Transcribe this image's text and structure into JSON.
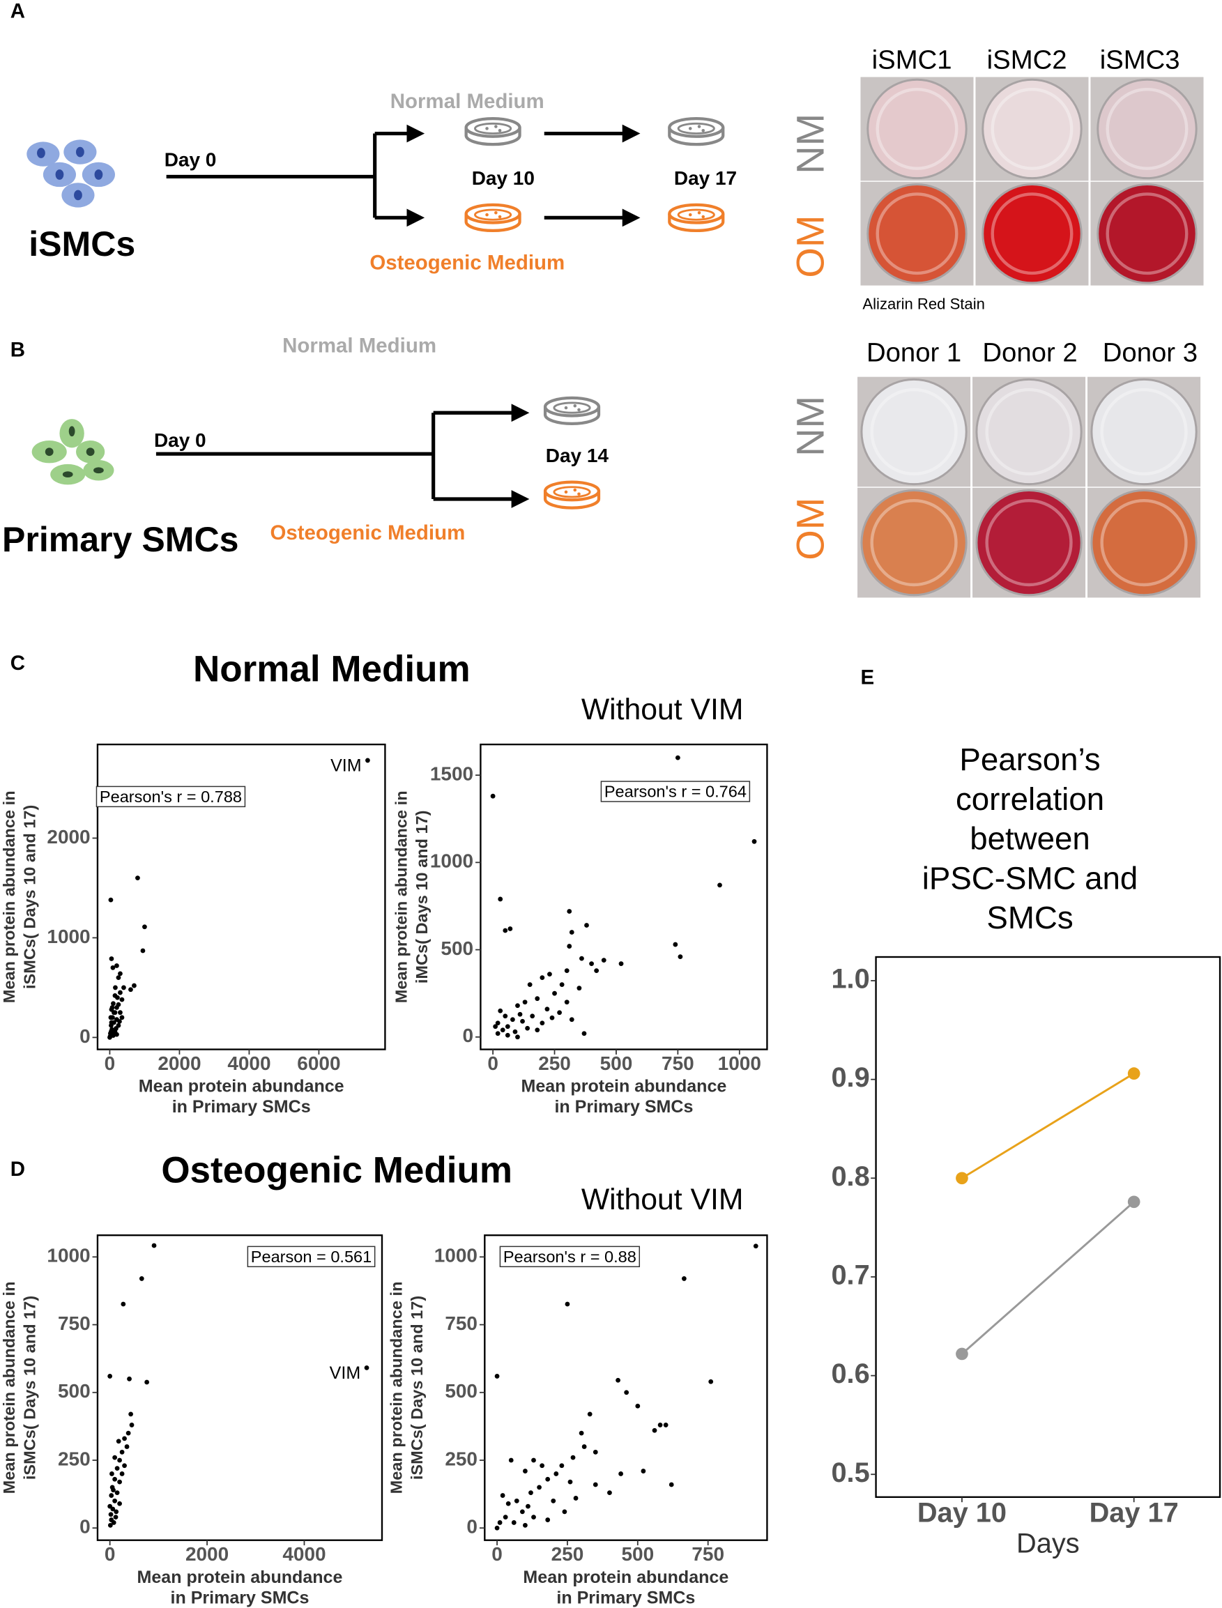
{
  "panel_a": {
    "label": "A",
    "cell_label": "iSMCs",
    "start": "Day 0",
    "normal": "Normal Medium",
    "osteogenic": "Osteogenic Medium",
    "day_mid": "Day 10",
    "day_end": "Day 17",
    "wells": [
      "iSMC1",
      "iSMC2",
      "iSMC3"
    ],
    "rows": [
      "NM",
      "OM"
    ],
    "stain": "Alizarin Red Stain"
  },
  "panel_b": {
    "label": "B",
    "cell_label": "Primary SMCs",
    "start": "Day 0",
    "normal": "Normal Medium",
    "osteogenic": "Osteogenic Medium",
    "day": "Day 14",
    "wells": [
      "Donor 1",
      "Donor 2",
      "Donor 3"
    ],
    "rows": [
      "NM",
      "OM"
    ]
  },
  "panel_c": {
    "label": "C",
    "title": "Normal Medium",
    "subtitle": "Without VIM"
  },
  "panel_d": {
    "label": "D",
    "title": "Osteogenic Medium",
    "subtitle": "Without VIM"
  },
  "panel_e": {
    "label": "E"
  },
  "chart_data": [
    {
      "type": "scatter",
      "stat_label": "Pearson's r  = 0.788",
      "xlabel": [
        "Mean protein abundance",
        "in Primary SMCs"
      ],
      "ylabel": [
        "Mean protein abundance in",
        "iSMCs( Days 10 and 17)"
      ],
      "xlim": [
        -350,
        7900
      ],
      "ylim": [
        -120,
        2940
      ],
      "xticks": [
        0,
        2000,
        4000,
        6000
      ],
      "yticks": [
        0,
        1000,
        2000
      ],
      "color": "#000000",
      "annotations": [
        {
          "text": "VIM",
          "x": 7400,
          "y": 2780
        }
      ],
      "x": [
        30,
        50,
        90,
        200,
        300,
        250,
        800,
        1000,
        950,
        700,
        600,
        400,
        300,
        150,
        350,
        250,
        100,
        200,
        50,
        150,
        300,
        80,
        200,
        120,
        40,
        250,
        60,
        150,
        20,
        100,
        10,
        200,
        70,
        180,
        30,
        350,
        120,
        280,
        50,
        90,
        0,
        220,
        160,
        40,
        7400
      ],
      "values": [
        1380,
        790,
        700,
        720,
        640,
        600,
        1600,
        1110,
        870,
        520,
        480,
        500,
        450,
        420,
        380,
        330,
        340,
        300,
        280,
        250,
        250,
        200,
        180,
        150,
        120,
        120,
        80,
        60,
        40,
        20,
        10,
        30,
        300,
        90,
        200,
        200,
        250,
        160,
        150,
        50,
        0,
        400,
        500,
        60,
        2780
      ]
    },
    {
      "type": "scatter",
      "stat_label": "Pearson's r = 0.764",
      "xlabel": [
        "Mean protein abundance",
        "in Primary SMCs"
      ],
      "ylabel": [
        "Mean protein abundance in",
        "iMCs( Days 10 and 17)"
      ],
      "xlim": [
        -50,
        1112
      ],
      "ylim": [
        -71,
        1676
      ],
      "xticks": [
        0,
        250,
        500,
        750,
        1000
      ],
      "yticks": [
        0,
        500,
        1000,
        1500
      ],
      "color": "#000000",
      "x": [
        0,
        750,
        1060,
        920,
        740,
        760,
        30,
        50,
        70,
        310,
        320,
        380,
        310,
        400,
        360,
        450,
        420,
        520,
        300,
        230,
        280,
        350,
        250,
        200,
        150,
        180,
        130,
        100,
        220,
        300,
        270,
        160,
        120,
        80,
        60,
        40,
        20,
        10,
        90,
        140,
        50,
        200,
        30,
        100,
        370,
        240,
        180,
        60,
        110,
        20,
        320
      ],
      "values": [
        1380,
        1600,
        1120,
        870,
        530,
        460,
        790,
        610,
        620,
        720,
        600,
        640,
        520,
        420,
        450,
        440,
        380,
        420,
        380,
        360,
        300,
        280,
        250,
        340,
        300,
        220,
        200,
        180,
        160,
        200,
        140,
        120,
        90,
        100,
        60,
        40,
        20,
        60,
        30,
        50,
        120,
        80,
        150,
        0,
        20,
        110,
        40,
        10,
        130,
        80,
        100
      ]
    },
    {
      "type": "scatter",
      "stat_label": "Pearson = 0.561",
      "xlabel": [
        "Mean protein abundance",
        "in Primary SMCs"
      ],
      "ylabel": [
        "Mean protein abundance in",
        "iSMCs( Days 10 and 17)"
      ],
      "xlim": [
        -254,
        5600
      ],
      "ylim": [
        -45,
        1080
      ],
      "xticks": [
        0,
        2000,
        4000
      ],
      "yticks": [
        0,
        250,
        500,
        750,
        1000
      ],
      "color": "#000000",
      "annotations": [
        {
          "text": "VIM",
          "x": 5285,
          "y": 591
        }
      ],
      "x": [
        909,
        655,
        275,
        0,
        400,
        760,
        430,
        450,
        380,
        300,
        350,
        250,
        200,
        100,
        300,
        150,
        250,
        200,
        100,
        50,
        150,
        100,
        30,
        200,
        60,
        20,
        120,
        80,
        10,
        40,
        180,
        0,
        70,
        130,
        30,
        5285
      ],
      "values": [
        1042,
        920,
        826,
        560,
        550,
        538,
        420,
        380,
        350,
        330,
        300,
        280,
        250,
        260,
        230,
        220,
        200,
        170,
        180,
        150,
        130,
        100,
        120,
        90,
        70,
        50,
        40,
        20,
        10,
        200,
        320,
        80,
        140,
        60,
        30,
        591
      ]
    },
    {
      "type": "scatter",
      "stat_label": "Pearson's r  = 0.88",
      "xlabel": [
        "Mean protein abundance",
        "in Primary SMCs"
      ],
      "ylabel": [
        "Mean protein abundance in",
        "iSMCs( Days 10 and 17)"
      ],
      "xlim": [
        -44,
        960
      ],
      "ylim": [
        -45,
        1080
      ],
      "xticks": [
        0,
        250,
        500,
        750
      ],
      "yticks": [
        0,
        250,
        500,
        750,
        1000
      ],
      "color": "#000000",
      "x": [
        920,
        665,
        250,
        0,
        760,
        430,
        460,
        500,
        580,
        600,
        560,
        330,
        300,
        310,
        350,
        270,
        230,
        210,
        160,
        130,
        100,
        50,
        180,
        150,
        260,
        120,
        70,
        40,
        90,
        30,
        10,
        60,
        130,
        200,
        20,
        350,
        400,
        440,
        240,
        180,
        110,
        0,
        280,
        520,
        620,
        100
      ],
      "values": [
        1040,
        920,
        826,
        560,
        540,
        545,
        500,
        450,
        380,
        380,
        360,
        420,
        350,
        300,
        280,
        260,
        230,
        200,
        230,
        250,
        210,
        250,
        180,
        150,
        170,
        130,
        100,
        90,
        60,
        40,
        20,
        20,
        40,
        100,
        120,
        160,
        130,
        200,
        60,
        30,
        80,
        0,
        110,
        210,
        160,
        10
      ]
    },
    {
      "type": "line",
      "title": [
        "Pearson’s",
        "correlation",
        "between",
        "iPSC-SMC and",
        "SMCs"
      ],
      "categories": [
        "Day 10",
        "Day 17"
      ],
      "xlabel": "Days",
      "ylim": [
        0.477,
        1.024
      ],
      "yticks": [
        {
          "value": 1,
          "label": "1.0"
        },
        0.9,
        0.8,
        0.7,
        0.6,
        0.5
      ],
      "series": [
        {
          "color": "#e8a21a",
          "values": [
            0.8,
            0.906
          ]
        },
        {
          "color": "#999999",
          "values": [
            0.622,
            0.776
          ]
        }
      ]
    }
  ]
}
